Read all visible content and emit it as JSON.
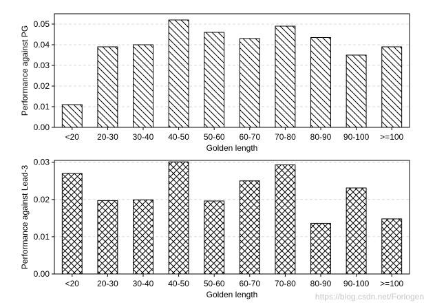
{
  "chart_data": [
    {
      "type": "bar",
      "categories": [
        "<20",
        "20-30",
        "30-40",
        "40-50",
        "50-60",
        "60-70",
        "70-80",
        "80-90",
        "90-100",
        ">=100"
      ],
      "values": [
        0.011,
        0.039,
        0.04,
        0.052,
        0.046,
        0.043,
        0.049,
        0.0435,
        0.035,
        0.039
      ],
      "xlabel": "Golden length",
      "ylabel": "Performance against PG",
      "ylim": [
        0,
        0.055
      ],
      "yticks": [
        0.0,
        0.01,
        0.02,
        0.03,
        0.04,
        0.05
      ],
      "ytick_labels": [
        "0.00",
        "0.01",
        "0.02",
        "0.03",
        "0.04",
        "0.05"
      ],
      "hatch": "diagonal",
      "grid": "horizontal dashed"
    },
    {
      "type": "bar",
      "categories": [
        "<20",
        "20-30",
        "30-40",
        "40-50",
        "50-60",
        "60-70",
        "70-80",
        "80-90",
        "90-100",
        ">=100"
      ],
      "values": [
        0.027,
        0.0197,
        0.0199,
        0.0301,
        0.0196,
        0.025,
        0.0293,
        0.0136,
        0.0231,
        0.0148
      ],
      "xlabel": "Golden length",
      "ylabel": "Performance against Lead-3",
      "ylim": [
        0,
        0.0305
      ],
      "yticks": [
        0.0,
        0.01,
        0.02,
        0.03
      ],
      "ytick_labels": [
        "0.00",
        "0.01",
        "0.02",
        "0.03"
      ],
      "hatch": "crosshatch",
      "grid": "horizontal dashed"
    }
  ],
  "watermark": "https://blog.csdn.net/Forlogen"
}
